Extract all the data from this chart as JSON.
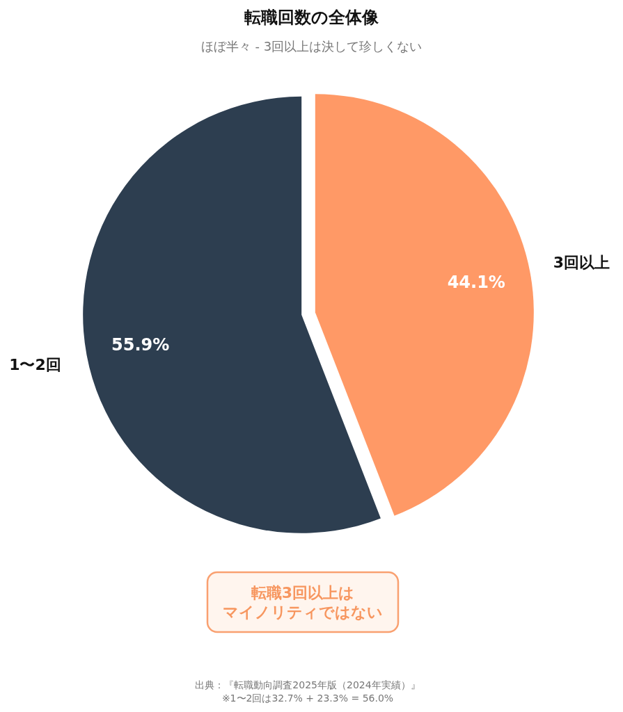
{
  "chart_data": {
    "type": "pie",
    "title": "転職回数の全体像",
    "subtitle": "ほぼ半々 - 3回以上は決して珍しくない",
    "categories": [
      "3回以上",
      "1〜2回"
    ],
    "values": [
      44.1,
      55.9
    ],
    "colors": [
      "#ff9966",
      "#2d3e50"
    ],
    "value_labels": [
      "44.1%",
      "55.9%"
    ],
    "annotations": [
      "転職3回以上はマイノリティではない",
      "出典：『転職動向調査2025年版（2024年実績）』",
      "※1〜2回は32.7% + 23.3% = 56.0%"
    ]
  }
}
